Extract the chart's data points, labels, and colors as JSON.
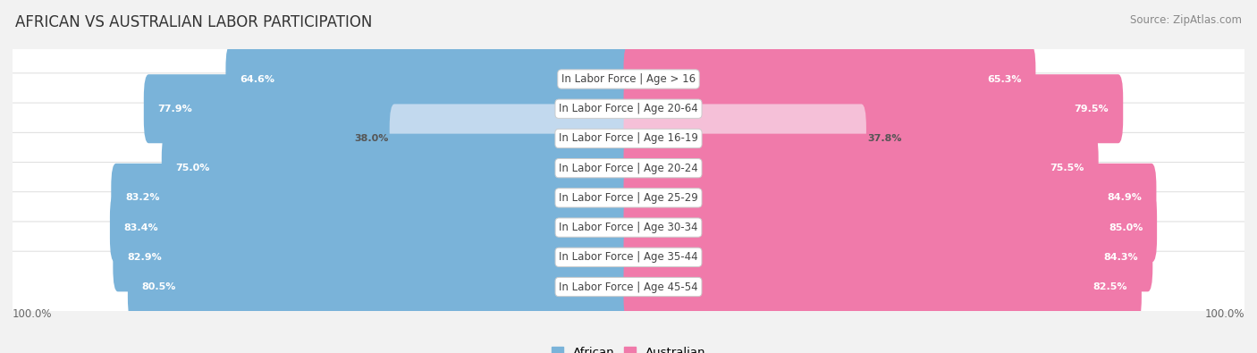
{
  "title": "AFRICAN VS AUSTRALIAN LABOR PARTICIPATION",
  "source": "Source: ZipAtlas.com",
  "categories": [
    "In Labor Force | Age > 16",
    "In Labor Force | Age 20-64",
    "In Labor Force | Age 16-19",
    "In Labor Force | Age 20-24",
    "In Labor Force | Age 25-29",
    "In Labor Force | Age 30-34",
    "In Labor Force | Age 35-44",
    "In Labor Force | Age 45-54"
  ],
  "african_values": [
    64.6,
    77.9,
    38.0,
    75.0,
    83.2,
    83.4,
    82.9,
    80.5
  ],
  "australian_values": [
    65.3,
    79.5,
    37.8,
    75.5,
    84.9,
    85.0,
    84.3,
    82.5
  ],
  "african_color": "#7ab3d9",
  "african_color_light": "#c2d9ee",
  "australian_color": "#f07aaa",
  "australian_color_light": "#f5c0d8",
  "background_color": "#f2f2f2",
  "row_bg_color": "#ffffff",
  "row_edge_color": "#d8d8d8",
  "title_fontsize": 12,
  "label_fontsize": 8.5,
  "value_fontsize": 8.0,
  "legend_fontsize": 9.5,
  "axis_label_fontsize": 8.5,
  "max_value": 100.0,
  "left_axis_label": "100.0%",
  "right_axis_label": "100.0%"
}
